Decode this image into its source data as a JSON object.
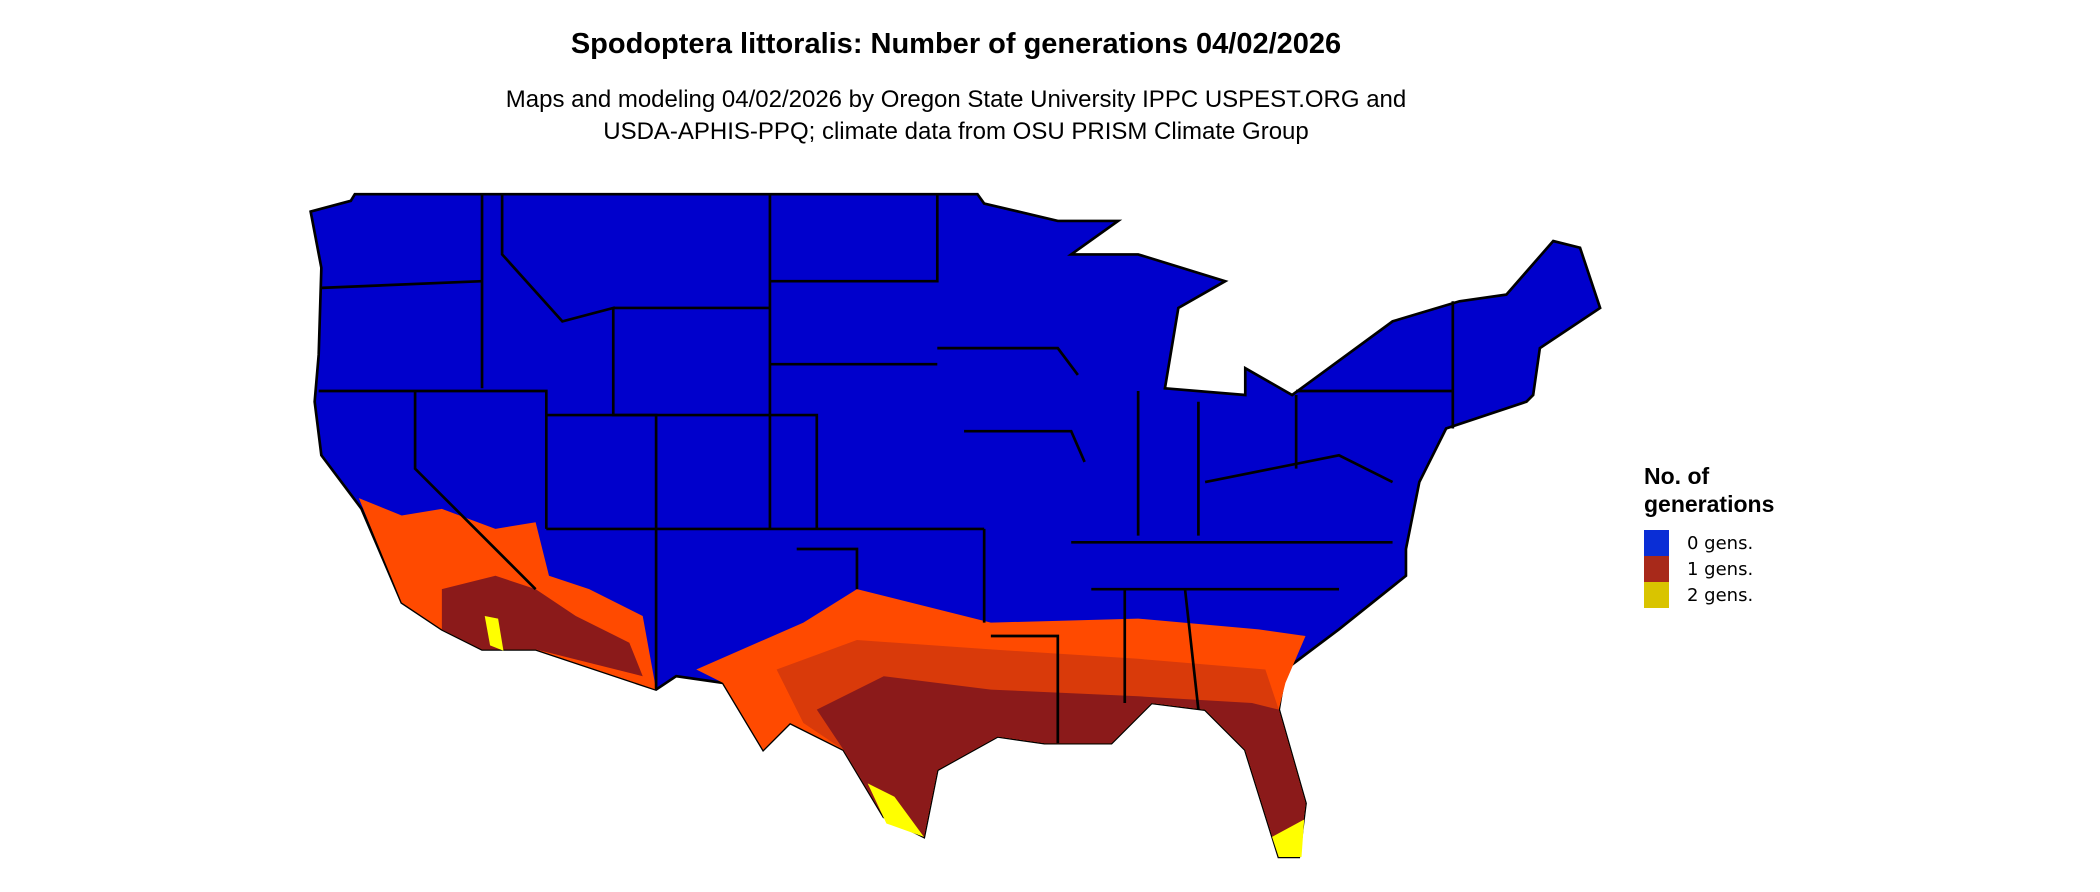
{
  "title": "Spodoptera littoralis: Number of generations 04/02/2026",
  "subtitle_line1": "Maps and modeling 04/02/2026 by Oregon State University IPPC USPEST.ORG and",
  "subtitle_line2": "USDA-APHIS-PPQ; climate data from OSU PRISM Climate Group",
  "legend": {
    "title_line1": "No. of",
    "title_line2": "generations",
    "items": [
      {
        "label": "0 gens.",
        "color": "#0a2ed6"
      },
      {
        "label": "1 gens.",
        "color": "#a8291a"
      },
      {
        "label": "2 gens.",
        "color": "#d9c400"
      }
    ]
  },
  "map_colors": {
    "zero_gens": "#0000cc",
    "one_gen_low": "#ff4a00",
    "one_gen_mid": "#d93a0a",
    "one_gen_high": "#8b1a1a",
    "two_gens": "#ffff00",
    "borders": "#000000"
  }
}
